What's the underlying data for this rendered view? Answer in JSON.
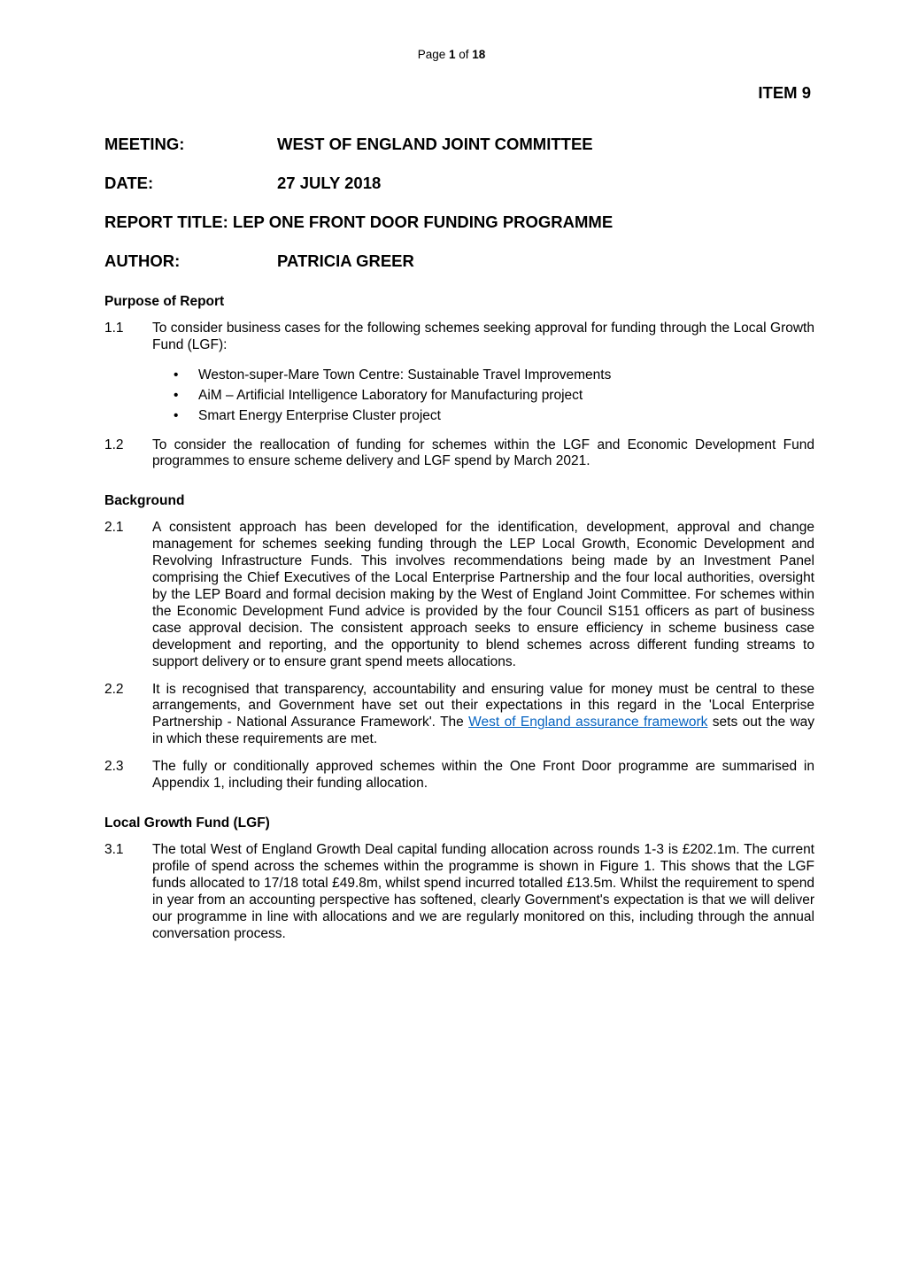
{
  "colors": {
    "text": "#000000",
    "background": "#ffffff",
    "link": "#0563c1"
  },
  "typography": {
    "body_fontsize_pt": 11.5,
    "heading_fontsize_pt": 14,
    "pagination_fontsize_pt": 10,
    "font_family": "Arial"
  },
  "pagination": {
    "prefix": "Page ",
    "current": "1",
    "of_word": " of ",
    "total": "18"
  },
  "item_label": "ITEM 9",
  "headings": {
    "meeting_label": "MEETING:",
    "meeting_value": "WEST OF ENGLAND JOINT COMMITTEE",
    "date_label": "DATE:",
    "date_value": "27 JULY 2018",
    "report_title_full": "REPORT TITLE: LEP ONE FRONT DOOR FUNDING PROGRAMME",
    "author_label": "AUTHOR:",
    "author_value": "PATRICIA GREER"
  },
  "sections": {
    "purpose": {
      "title": "Purpose of Report",
      "paras": [
        {
          "num": "1.1",
          "text": "To consider business cases for the following schemes seeking approval for funding through the Local Growth Fund (LGF):"
        }
      ],
      "bullets": [
        "Weston-super-Mare Town Centre: Sustainable Travel Improvements",
        "AiM – Artificial Intelligence Laboratory for Manufacturing project",
        "Smart Energy Enterprise Cluster project"
      ],
      "paras_after": [
        {
          "num": "1.2",
          "text": "To consider the reallocation of funding for schemes within the LGF and Economic Development Fund programmes to ensure scheme delivery and LGF spend by March 2021."
        }
      ]
    },
    "background": {
      "title": "Background",
      "paras": [
        {
          "num": "2.1",
          "text": "A consistent approach has been developed for the identification, development, approval and change management for schemes seeking funding through the LEP Local Growth, Economic Development and Revolving Infrastructure Funds. This involves recommendations being made by an Investment Panel comprising the Chief Executives of the Local Enterprise Partnership and the four local authorities, oversight by the LEP Board and formal decision making by the West of England Joint Committee. For schemes within the Economic Development Fund advice is provided by the four Council S151 officers as part of business case approval decision. The consistent approach seeks to ensure efficiency in scheme business case development and reporting, and the opportunity to blend schemes across different funding streams to support delivery or to ensure grant spend meets allocations."
        },
        {
          "num": "2.2",
          "text_pre": "It is recognised that transparency, accountability and ensuring value for money must be central to these arrangements, and Government have set out their expectations in this regard in the 'Local Enterprise Partnership - National Assurance Framework'. The ",
          "link_text": "West of England assurance framework",
          "text_post": " sets out the way in which these requirements are met."
        },
        {
          "num": "2.3",
          "text": "The fully or conditionally approved schemes within the One Front Door programme are summarised in Appendix 1, including their funding allocation."
        }
      ]
    },
    "lgf": {
      "title": "Local Growth Fund (LGF)",
      "paras": [
        {
          "num": "3.1",
          "text": "The total West of England Growth Deal capital funding allocation across rounds 1-3 is £202.1m. The current profile of spend across the schemes within the programme is shown in Figure 1. This shows that the LGF funds allocated to 17/18 total £49.8m, whilst spend incurred totalled £13.5m. Whilst the requirement to spend in year from an accounting perspective has softened, clearly Government's expectation is that we will deliver our programme in line with allocations and we are regularly monitored on this, including through the annual conversation process."
        }
      ]
    }
  }
}
